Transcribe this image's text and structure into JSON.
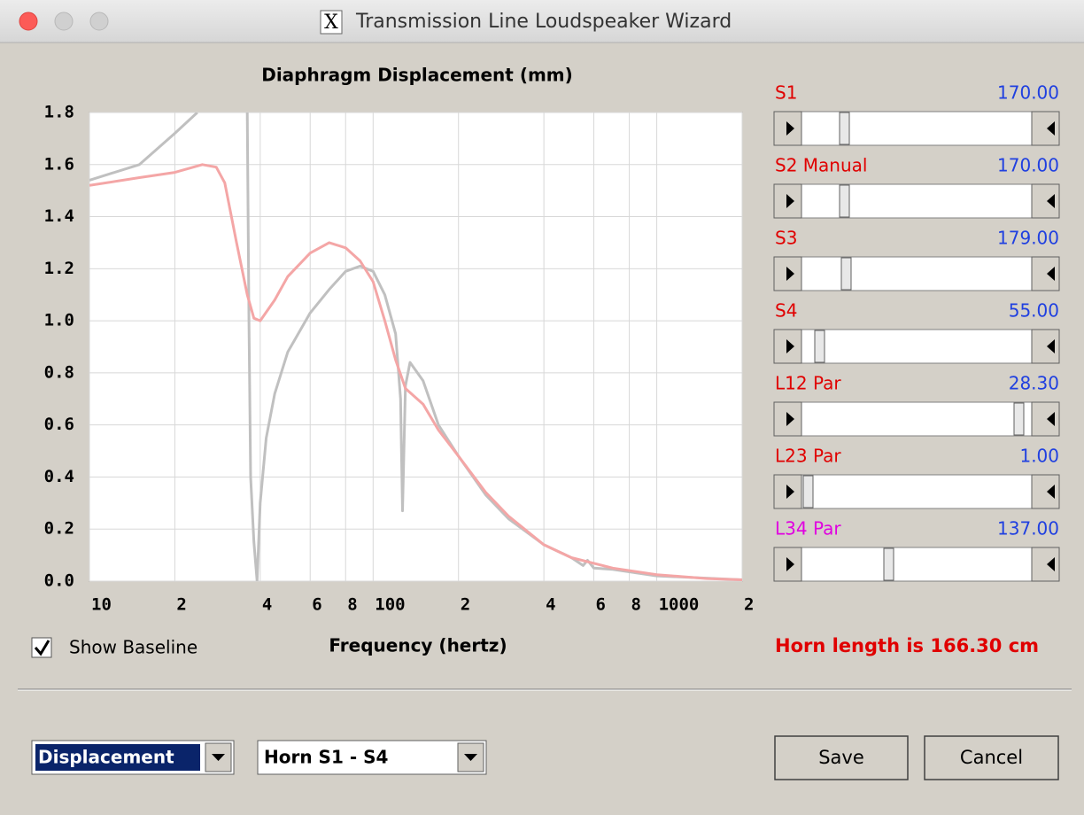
{
  "window": {
    "title": "Transmission Line Loudspeaker Wizard"
  },
  "chart_data": {
    "type": "line",
    "title": "Diaphragm Displacement (mm)",
    "x_label": "Frequency (hertz)",
    "log_x": true,
    "grid": true,
    "xlim": [
      10,
      2000
    ],
    "ylim": [
      0,
      1.8
    ],
    "xticks": [
      10,
      {
        "value": 20,
        "label": "2"
      },
      {
        "value": 40,
        "label": "4"
      },
      {
        "value": 60,
        "label": "6"
      },
      {
        "value": 80,
        "label": "8"
      },
      100,
      {
        "value": 200,
        "label": "2"
      },
      {
        "value": 400,
        "label": "4"
      },
      {
        "value": 600,
        "label": "6"
      },
      {
        "value": 800,
        "label": "8"
      },
      1000,
      {
        "value": 2000,
        "label": "2"
      }
    ],
    "yticks": [
      {
        "value": 0,
        "label": "0.0"
      },
      0.2,
      0.4,
      0.6,
      0.8,
      {
        "value": 1,
        "label": "1.0"
      },
      1.2,
      1.4,
      1.6,
      1.8
    ],
    "series": [
      {
        "color": "#c0c0c0",
        "x": [
          10,
          15,
          20,
          24,
          26,
          36,
          36.5,
          37,
          38,
          39,
          40,
          42,
          45,
          50,
          60,
          70,
          80,
          90,
          100,
          110,
          120,
          125,
          127,
          130,
          135,
          150,
          170,
          200,
          250,
          300,
          400,
          500,
          550,
          570,
          600,
          700,
          1000,
          2000
        ],
        "values": [
          1.54,
          1.6,
          1.72,
          1.8,
          null,
          1.8,
          1.0,
          0.4,
          0.15,
          0.0,
          0.3,
          0.55,
          0.72,
          0.88,
          1.03,
          1.12,
          1.19,
          1.21,
          1.19,
          1.1,
          0.95,
          0.7,
          0.27,
          0.75,
          0.84,
          0.77,
          0.6,
          0.48,
          0.33,
          0.24,
          0.14,
          0.09,
          0.06,
          0.08,
          0.05,
          0.045,
          0.02,
          0.005
        ]
      },
      {
        "color": "#f4a6a6",
        "x": [
          10,
          15,
          20,
          25,
          28,
          30,
          33,
          36,
          38,
          40,
          45,
          50,
          60,
          70,
          80,
          90,
          100,
          110,
          120,
          130,
          150,
          170,
          200,
          250,
          300,
          400,
          500,
          700,
          1000,
          1500,
          2000
        ],
        "values": [
          1.52,
          1.55,
          1.57,
          1.6,
          1.59,
          1.53,
          1.3,
          1.1,
          1.01,
          1.0,
          1.08,
          1.17,
          1.26,
          1.3,
          1.28,
          1.23,
          1.15,
          1.0,
          0.85,
          0.74,
          0.68,
          0.58,
          0.48,
          0.34,
          0.25,
          0.14,
          0.09,
          0.05,
          0.025,
          0.01,
          0.005
        ]
      }
    ]
  },
  "sliders": [
    {
      "label": "S1",
      "value": "170.00",
      "label_color": "#e00000"
    },
    {
      "label": "S2  Manual",
      "value": "170.00",
      "label_color": "#e00000"
    },
    {
      "label": "S3",
      "value": "179.00",
      "label_color": "#e00000"
    },
    {
      "label": "S4",
      "value": "55.00",
      "label_color": "#e00000"
    },
    {
      "label": "L12  Par",
      "value": "28.30",
      "label_color": "#e00000"
    },
    {
      "label": "L23  Par",
      "value": "1.00",
      "label_color": "#e00000"
    },
    {
      "label": "L34  Par",
      "value": "137.00",
      "label_color": "#e000e0"
    }
  ],
  "horn_length": "Horn length is 166.30 cm",
  "show_baseline": {
    "label": "Show Baseline",
    "checked": true
  },
  "dropdowns": [
    {
      "selected": "Displacement"
    },
    {
      "selected": "Horn S1 - S4"
    }
  ],
  "buttons": [
    "Save",
    "Cancel"
  ]
}
